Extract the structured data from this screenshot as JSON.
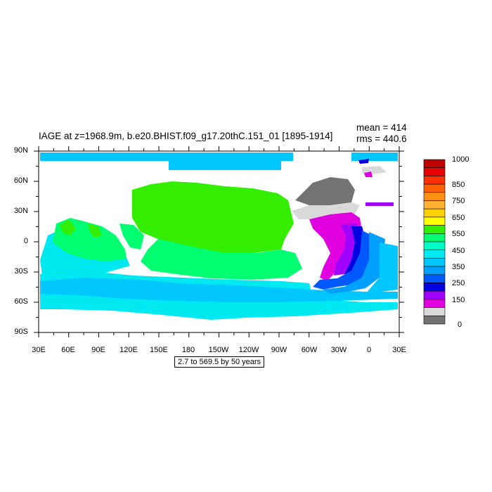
{
  "title": "IAGE at z=1968.9m, b.e20.BHIST.f09_g17.20thC.151_01 [1895-1914]",
  "stats": {
    "mean": "mean = 414",
    "rms": "rms = 440.6"
  },
  "y_ticks": [
    "90N",
    "60N",
    "30N",
    "0",
    "30S",
    "60S",
    "90S"
  ],
  "x_ticks": [
    "30E",
    "60E",
    "90E",
    "120E",
    "150E",
    "180",
    "150W",
    "120W",
    "90W",
    "60W",
    "30W",
    "0",
    "30E"
  ],
  "colorbar": {
    "labels": [
      "1000",
      "850",
      "750",
      "650",
      "550",
      "450",
      "350",
      "250",
      "150",
      "0"
    ],
    "colors": [
      "#bf0000",
      "#e60000",
      "#ff3000",
      "#ff6000",
      "#ff9010",
      "#ffb030",
      "#ffd000",
      "#ffff00",
      "#33ee00",
      "#00ff70",
      "#00ffc8",
      "#00e8f0",
      "#00c8ff",
      "#00a0ff",
      "#0058ff",
      "#0000e0",
      "#a000ff",
      "#e000e0",
      "#d9d9d9",
      "#737373"
    ]
  },
  "contour_note": "2.7 to 569.5 by 50 years",
  "palette": {
    "land": "#ffffff",
    "frame": "#000000"
  }
}
